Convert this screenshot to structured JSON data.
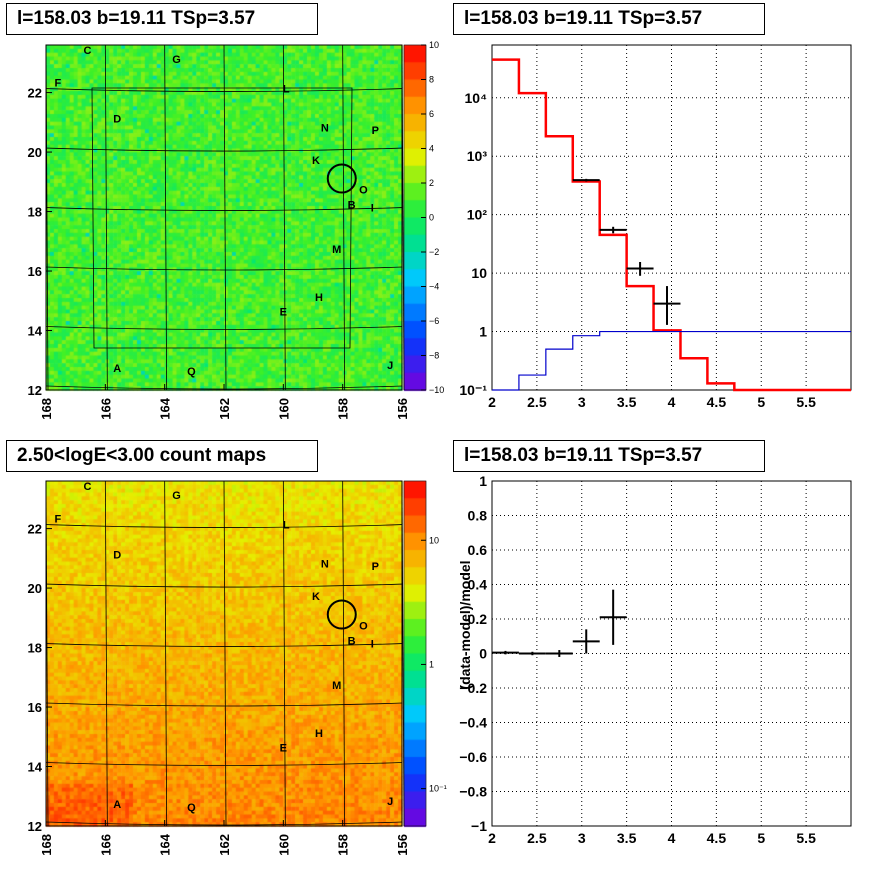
{
  "titles": {
    "top_left": "l=158.03 b=19.11 TSp=3.57",
    "top_right": "l=158.03 b=19.11 TSp=3.57",
    "bottom_left": "2.50<logE<3.00 count maps",
    "bottom_right": "l=158.03 b=19.11 TSp=3.57"
  },
  "chart_data": [
    {
      "type": "heatmap",
      "panel": "top-left",
      "description_of_values": "residual significance map",
      "x_ticks": [
        "168",
        "166",
        "164",
        "162",
        "160",
        "158",
        "156"
      ],
      "y_ticks": [
        "12",
        "14",
        "16",
        "18",
        "20",
        "22"
      ],
      "xlim": [
        168,
        156
      ],
      "ylim": [
        12,
        23.6
      ],
      "palette": "rainbow",
      "colorbar_ticks": [
        "10",
        "8",
        "6",
        "4",
        "2",
        "0",
        "−2",
        "−4",
        "−6",
        "−8",
        "−10"
      ],
      "zlim": [
        -10,
        10
      ],
      "source_labels": [
        {
          "label": "C",
          "l": 166.6,
          "b": 23.3
        },
        {
          "label": "G",
          "l": 163.6,
          "b": 23.0
        },
        {
          "label": "F",
          "l": 167.6,
          "b": 22.2
        },
        {
          "label": "L",
          "l": 159.9,
          "b": 22.0
        },
        {
          "label": "D",
          "l": 165.6,
          "b": 21.0
        },
        {
          "label": "N",
          "l": 158.6,
          "b": 20.7
        },
        {
          "label": "P",
          "l": 156.9,
          "b": 20.6
        },
        {
          "label": "K",
          "l": 158.9,
          "b": 19.6
        },
        {
          "label": "O",
          "l": 157.3,
          "b": 18.6
        },
        {
          "label": "B",
          "l": 157.7,
          "b": 18.1
        },
        {
          "label": "I",
          "l": 157.0,
          "b": 18.0
        },
        {
          "label": "M",
          "l": 158.2,
          "b": 16.6
        },
        {
          "label": "H",
          "l": 158.8,
          "b": 15.0
        },
        {
          "label": "E",
          "l": 160.0,
          "b": 14.5
        },
        {
          "label": "J",
          "l": 156.4,
          "b": 12.7
        },
        {
          "label": "A",
          "l": 165.6,
          "b": 12.6
        },
        {
          "label": "Q",
          "l": 163.1,
          "b": 12.5
        }
      ],
      "target": {
        "l": 158.03,
        "b": 19.11
      }
    },
    {
      "type": "line",
      "panel": "top-right",
      "xlim": [
        2,
        6
      ],
      "ylim": [
        0.1,
        80000
      ],
      "log_y": true,
      "grid": true,
      "x_ticks": [
        "2",
        "2.5",
        "3",
        "3.5",
        "4",
        "4.5",
        "5",
        "5.5"
      ],
      "y_ticks": [
        "10⁻¹",
        "1",
        "10",
        "10²",
        "10³",
        "10⁴"
      ],
      "bin_edges": [
        2.0,
        2.3,
        2.6,
        2.9,
        3.2,
        3.5,
        3.8,
        4.1,
        4.4,
        4.7,
        5.0,
        5.3,
        5.6,
        6.0
      ],
      "series": [
        {
          "color": "#ff0000",
          "style": "histogram",
          "values": [
            45000,
            12000,
            2200,
            370,
            45,
            6,
            1.05,
            0.35,
            0.13,
            0.1,
            0.1,
            0.1,
            0.1
          ]
        },
        {
          "color": "#0000cc",
          "style": "histogram",
          "values": [
            0.08,
            0.18,
            0.5,
            0.85,
            1.0,
            1.0,
            1.0,
            1.0,
            1.0,
            1.0,
            1.0,
            1.0,
            1.0
          ]
        },
        {
          "color": "#000000",
          "style": "points",
          "points": [
            {
              "x": 3.05,
              "y": 390,
              "ylo": 370,
              "yhi": 410
            },
            {
              "x": 3.35,
              "y": 55,
              "ylo": 48,
              "yhi": 62
            },
            {
              "x": 3.65,
              "y": 12,
              "ylo": 9,
              "yhi": 15.5
            },
            {
              "x": 3.95,
              "y": 3,
              "ylo": 1.3,
              "yhi": 6
            }
          ]
        }
      ]
    },
    {
      "type": "heatmap",
      "panel": "bottom-left",
      "description_of_values": "count map",
      "x_ticks": [
        "168",
        "166",
        "164",
        "162",
        "160",
        "158",
        "156"
      ],
      "y_ticks": [
        "12",
        "14",
        "16",
        "18",
        "20",
        "22"
      ],
      "xlim": [
        168,
        156
      ],
      "ylim": [
        12,
        23.6
      ],
      "palette": "rainbow",
      "colorbar_ticks": [
        "10",
        "1",
        "10⁻¹"
      ],
      "zlim": [
        0.05,
        30
      ],
      "log_z": true
    },
    {
      "type": "scatter",
      "panel": "bottom-right",
      "ylabel": "(data-model)/model",
      "xlim": [
        2,
        6
      ],
      "ylim": [
        -1,
        1
      ],
      "grid": true,
      "x_ticks": [
        "2",
        "2.5",
        "3",
        "3.5",
        "4",
        "4.5",
        "5",
        "5.5"
      ],
      "y_ticks": [
        "−1",
        "−0.8",
        "−0.6",
        "−0.4",
        "−0.2",
        "0",
        "0.2",
        "0.4",
        "0.6",
        "0.8",
        "1"
      ],
      "points": [
        {
          "x": 2.15,
          "y": 0.005,
          "xerr": 0.15,
          "ylo": -0.005,
          "yhi": 0.015
        },
        {
          "x": 2.45,
          "y": 0.0,
          "xerr": 0.15,
          "ylo": -0.01,
          "yhi": 0.01
        },
        {
          "x": 2.75,
          "y": 0.0,
          "xerr": 0.15,
          "ylo": -0.02,
          "yhi": 0.02
        },
        {
          "x": 3.05,
          "y": 0.07,
          "xerr": 0.15,
          "ylo": 0.0,
          "yhi": 0.14
        },
        {
          "x": 3.35,
          "y": 0.21,
          "xerr": 0.15,
          "ylo": 0.05,
          "yhi": 0.37
        }
      ]
    }
  ]
}
